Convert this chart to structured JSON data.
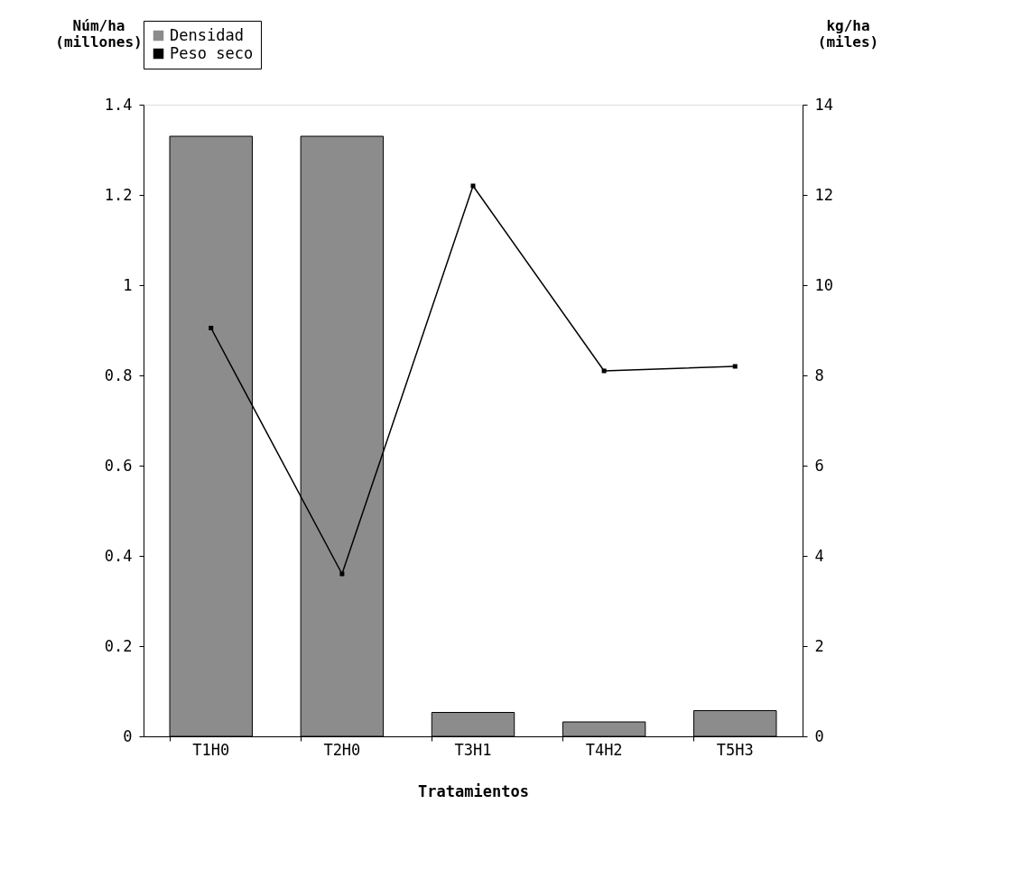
{
  "chart_data": {
    "type": "bar",
    "xlabel": "Tratamientos",
    "ylabel": "Núm/ha (millones)",
    "y2label": "kg/ha (miles)",
    "categories": [
      "T1H0",
      "T2H0",
      "T3H1",
      "T4H2",
      "T5H3"
    ],
    "series": [
      {
        "name": "Densidad",
        "color": "#8c8c8c",
        "values": [
          1.33,
          1.33,
          0.053,
          0.032,
          0.057
        ]
      },
      {
        "name": "Peso seco",
        "type": "line",
        "axis": "y2",
        "color": "#000000",
        "values": [
          9.05,
          3.6,
          12.2,
          8.1,
          8.2
        ]
      }
    ],
    "ylim": [
      0,
      1.4
    ],
    "yticks": [
      0,
      0.2,
      0.4,
      0.6,
      0.8,
      1,
      1.2,
      1.4
    ],
    "y2lim": [
      0,
      14
    ],
    "y2ticks": [
      0,
      2,
      4,
      6,
      8,
      10,
      12,
      14
    ],
    "legend": "top",
    "grid": false,
    "marker": "square",
    "line_style": "solid"
  }
}
